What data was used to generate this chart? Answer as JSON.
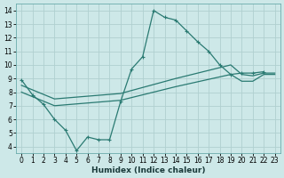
{
  "xlabel": "Humidex (Indice chaleur)",
  "bg_color": "#cde8e8",
  "grid_color": "#b0d0d0",
  "line_color": "#2a7a72",
  "xlim": [
    -0.5,
    23.5
  ],
  "ylim": [
    3.5,
    14.5
  ],
  "xtick_vals": [
    0,
    1,
    2,
    3,
    4,
    5,
    6,
    7,
    8,
    9,
    10,
    11,
    12,
    13,
    14,
    15,
    16,
    17,
    18,
    19,
    20,
    21,
    22,
    23
  ],
  "ytick_vals": [
    4,
    5,
    6,
    7,
    8,
    9,
    10,
    11,
    12,
    13,
    14
  ],
  "main_x": [
    0,
    1,
    2,
    3,
    4,
    5,
    6,
    7,
    8,
    9,
    10,
    11,
    12,
    13,
    14,
    15,
    16,
    17,
    18,
    19,
    20,
    21,
    22
  ],
  "main_y": [
    8.9,
    7.8,
    7.1,
    6.0,
    5.2,
    3.7,
    4.7,
    4.5,
    4.5,
    7.3,
    9.7,
    10.6,
    14.0,
    13.5,
    13.3,
    12.5,
    11.7,
    11.0,
    10.0,
    9.3,
    9.4,
    9.4,
    9.5
  ],
  "smooth1_x": [
    0,
    3,
    9,
    14,
    19,
    20,
    21,
    22,
    23
  ],
  "smooth1_y": [
    8.5,
    7.5,
    7.9,
    9.0,
    10.0,
    9.3,
    9.2,
    9.4,
    9.4
  ],
  "smooth2_x": [
    0,
    3,
    9,
    14,
    19,
    20,
    21,
    22,
    23
  ],
  "smooth2_y": [
    8.0,
    7.0,
    7.4,
    8.4,
    9.3,
    8.8,
    8.8,
    9.3,
    9.3
  ]
}
